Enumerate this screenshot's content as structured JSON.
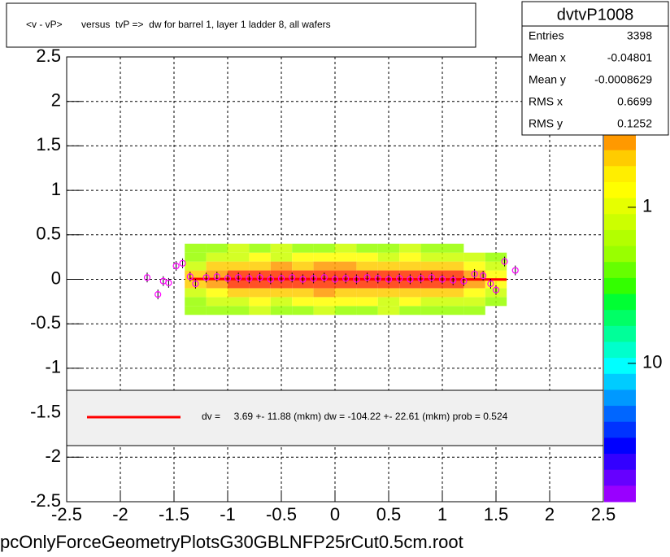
{
  "chart_data": {
    "type": "scatter",
    "title": "<v - vP>       versus  tvP =>  dw for barrel 1, layer 1 ladder 8, all wafers",
    "footer": "pcOnlyForceGeometryPlotsG30GBLNFP25rCut0.5cm.root",
    "stats": {
      "name": "dvtvP1008",
      "rows": [
        [
          "Entries",
          "3398"
        ],
        [
          "Mean x",
          "-0.04801"
        ],
        [
          "Mean y",
          "-0.0008629"
        ],
        [
          "RMS x",
          "0.6699"
        ],
        [
          "RMS y",
          "0.1252"
        ]
      ]
    },
    "xlim": [
      -2.5,
      2.5
    ],
    "ylim": [
      -2.5,
      2.5
    ],
    "xticks": [
      -2.5,
      -2,
      -1.5,
      -1,
      -0.5,
      0,
      0.5,
      1,
      1.5,
      2,
      2.5
    ],
    "yticks": [
      -2.5,
      -2,
      -1.5,
      -1,
      -0.5,
      0,
      0.5,
      1,
      1.5,
      2,
      2.5
    ],
    "grid": true,
    "heatmap": {
      "xbins": [
        -1.4,
        -1.2,
        -1.0,
        -0.8,
        -0.6,
        -0.4,
        -0.2,
        0,
        0.2,
        0.4,
        0.6,
        0.8,
        1.0,
        1.2,
        1.4,
        1.6
      ],
      "ybins": [
        -0.4,
        -0.3,
        -0.2,
        -0.1,
        0,
        0.1,
        0.2,
        0.3,
        0.4
      ],
      "colors": [
        "#99ff00",
        "#ccff00",
        "#ffff00",
        "#ffcc00",
        "#ff9900",
        "#ff3300"
      ],
      "counts": [
        [
          1,
          1,
          1,
          2,
          1,
          1,
          2,
          1,
          1,
          2,
          1,
          1,
          1,
          1,
          0
        ],
        [
          1,
          2,
          3,
          4,
          3,
          4,
          5,
          4,
          4,
          3,
          4,
          3,
          2,
          2,
          1
        ],
        [
          3,
          6,
          9,
          10,
          12,
          11,
          13,
          12,
          12,
          11,
          10,
          9,
          7,
          5,
          2
        ],
        [
          8,
          20,
          30,
          35,
          38,
          40,
          42,
          44,
          41,
          40,
          36,
          32,
          25,
          15,
          4
        ],
        [
          9,
          22,
          32,
          36,
          40,
          42,
          45,
          43,
          42,
          39,
          37,
          30,
          26,
          14,
          5
        ],
        [
          3,
          7,
          10,
          11,
          13,
          12,
          14,
          13,
          12,
          12,
          11,
          9,
          7,
          5,
          2
        ],
        [
          1,
          2,
          3,
          4,
          3,
          5,
          4,
          4,
          5,
          3,
          4,
          3,
          2,
          2,
          1
        ],
        [
          1,
          1,
          2,
          1,
          2,
          1,
          1,
          2,
          1,
          1,
          2,
          1,
          1,
          0,
          0
        ]
      ]
    },
    "series": [
      {
        "name": "profile",
        "color": "#ff00ff",
        "x": [
          -1.75,
          -1.65,
          -1.6,
          -1.55,
          -1.48,
          -1.42,
          -1.35,
          -1.3,
          -1.2,
          -1.1,
          -1.0,
          -0.9,
          -0.8,
          -0.7,
          -0.6,
          -0.5,
          -0.4,
          -0.3,
          -0.2,
          -0.1,
          0,
          0.1,
          0.2,
          0.3,
          0.4,
          0.5,
          0.6,
          0.7,
          0.8,
          0.9,
          1.0,
          1.1,
          1.2,
          1.3,
          1.38,
          1.45,
          1.5,
          1.58,
          1.68
        ],
        "values": [
          0.02,
          -0.17,
          -0.02,
          -0.04,
          0.15,
          0.18,
          0.03,
          -0.05,
          0.02,
          0.03,
          0.01,
          0.02,
          0.01,
          0.02,
          0.0,
          0.01,
          0.02,
          0.0,
          0.01,
          0.02,
          0.0,
          0.01,
          0.0,
          0.02,
          0.01,
          0.0,
          0.01,
          0.0,
          0.01,
          0.02,
          0.0,
          -0.01,
          -0.02,
          0.06,
          0.04,
          -0.05,
          -0.12,
          0.2,
          0.1
        ]
      },
      {
        "name": "fit",
        "color": "#ff0000",
        "x": [
          -1.35,
          1.6
        ],
        "values": [
          0.004,
          -0.002
        ]
      }
    ],
    "legend": {
      "text": "dv =     3.69 +- 11.88 (mkm) dw = -104.22 +- 22.61 (mkm) prob = 0.524"
    },
    "zlim": [
      77,
      0.34
    ],
    "zticks": [
      1,
      10
    ],
    "zlog": true,
    "colorbar": [
      "#ff9900",
      "#ffcc00",
      "#ffee00",
      "#ffff00",
      "#e6ff00",
      "#ccff00",
      "#b3ff00",
      "#99ff00",
      "#66ff00",
      "#33ff00",
      "#00ff33",
      "#00ff66",
      "#00ff99",
      "#00ffcc",
      "#00ffff",
      "#00ccff",
      "#0099ff",
      "#0066ff",
      "#0033ff",
      "#0000ff",
      "#3300ff",
      "#6600ff",
      "#9900ff"
    ]
  }
}
